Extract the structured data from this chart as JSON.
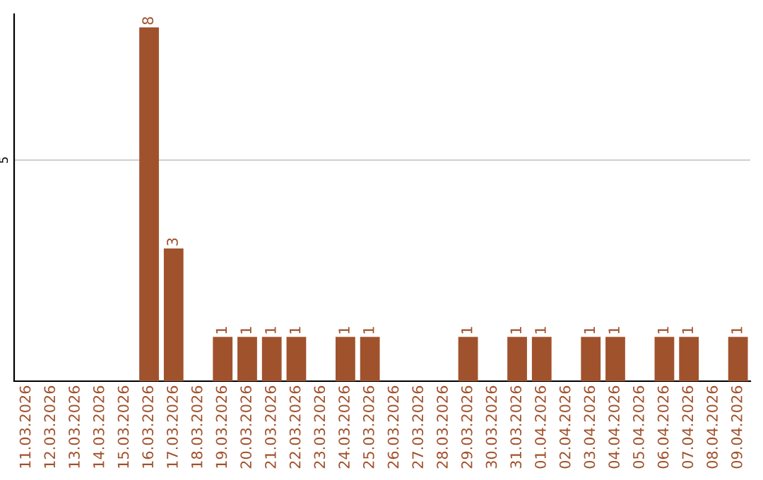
{
  "chart_data": {
    "type": "bar",
    "categories": [
      "11.03.2026",
      "12.03.2026",
      "13.03.2026",
      "14.03.2026",
      "15.03.2026",
      "16.03.2026",
      "17.03.2026",
      "18.03.2026",
      "19.03.2026",
      "20.03.2026",
      "21.03.2026",
      "22.03.2026",
      "23.03.2026",
      "24.03.2026",
      "25.03.2026",
      "26.03.2026",
      "27.03.2026",
      "28.03.2026",
      "29.03.2026",
      "30.03.2026",
      "31.03.2026",
      "01.04.2026",
      "02.04.2026",
      "03.04.2026",
      "04.04.2026",
      "05.04.2026",
      "06.04.2026",
      "07.04.2026",
      "08.04.2026",
      "09.04.2026"
    ],
    "values": [
      0,
      0,
      0,
      0,
      0,
      8,
      3,
      0,
      1,
      1,
      1,
      1,
      0,
      1,
      1,
      0,
      0,
      0,
      1,
      0,
      1,
      1,
      0,
      1,
      1,
      0,
      1,
      1,
      0,
      1
    ],
    "value_labels": [
      null,
      null,
      null,
      null,
      null,
      "8",
      "3",
      null,
      "1",
      "1",
      "1",
      "1",
      null,
      "1",
      "1",
      null,
      null,
      null,
      "1",
      null,
      "1",
      "1",
      null,
      "1",
      "1",
      null,
      "1",
      "1",
      null,
      "1"
    ],
    "color": "#a0522d",
    "ylim": [
      0,
      8.3
    ],
    "yticks": [
      5
    ],
    "grid": "y",
    "legend": false
  }
}
